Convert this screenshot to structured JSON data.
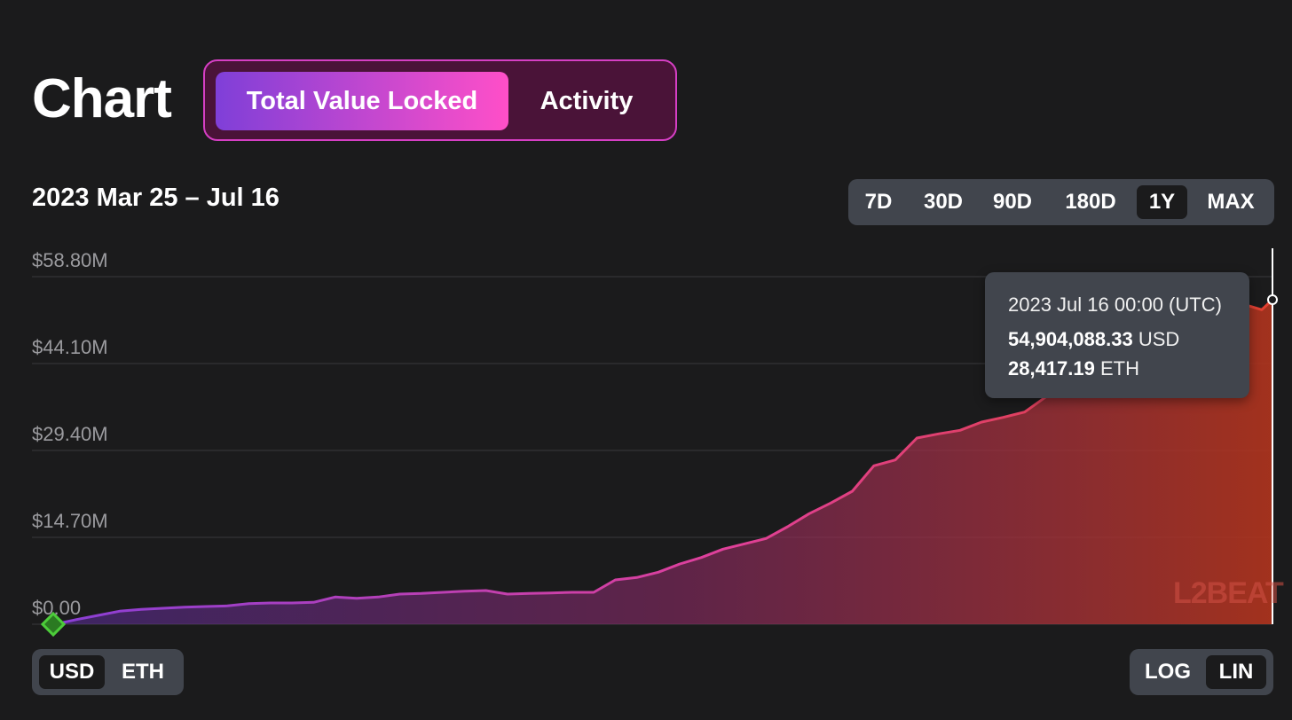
{
  "header": {
    "title": "Chart",
    "tabs": [
      {
        "label": "Total Value Locked",
        "active": true
      },
      {
        "label": "Activity",
        "active": false
      }
    ]
  },
  "date_range": "2023 Mar 25 – Jul 16",
  "periods": {
    "items": [
      "7D",
      "30D",
      "90D",
      "180D",
      "1Y",
      "MAX"
    ],
    "selected": "1Y"
  },
  "tooltip": {
    "date": "2023 Jul 16 00:00 (UTC)",
    "usd_value": "54,904,088.33",
    "usd_unit": "USD",
    "eth_value": "28,417.19",
    "eth_unit": "ETH"
  },
  "watermark": "L2BEAT",
  "currency_toggle": {
    "items": [
      "USD",
      "ETH"
    ],
    "selected": "USD"
  },
  "scale_toggle": {
    "items": [
      "LOG",
      "LIN"
    ],
    "selected": "LIN"
  },
  "colors": {
    "line_start": "#8a3fd6",
    "line_mid": "#e0409a",
    "line_end": "#e0402f",
    "marker": "#4ccc3a"
  },
  "chart_data": {
    "type": "area",
    "ylim": [
      0,
      58.8
    ],
    "yticks": [
      {
        "value": 0,
        "label": "$0.00"
      },
      {
        "value": 14.7,
        "label": "$14.70M"
      },
      {
        "value": 29.4,
        "label": "$29.40M"
      },
      {
        "value": 44.1,
        "label": "$44.10M"
      },
      {
        "value": 58.8,
        "label": "$58.80M"
      }
    ],
    "x": [
      0,
      2,
      4,
      6,
      8,
      10,
      12,
      14,
      16,
      18,
      20,
      22,
      24,
      26,
      28,
      30,
      32,
      34,
      36,
      38,
      40,
      42,
      44,
      46,
      48,
      50,
      52,
      54,
      56,
      58,
      60,
      62,
      64,
      66,
      68,
      70,
      72,
      74,
      76,
      78,
      80,
      82,
      84,
      86,
      88,
      90,
      92,
      94,
      96,
      98,
      100,
      102,
      104,
      106,
      108,
      110,
      112,
      113
    ],
    "values": [
      0,
      0.8,
      1.5,
      2.2,
      2.5,
      2.7,
      2.9,
      3.0,
      3.1,
      3.5,
      3.6,
      3.6,
      3.7,
      4.6,
      4.4,
      4.6,
      5.1,
      5.2,
      5.4,
      5.6,
      5.7,
      5.1,
      5.2,
      5.3,
      5.4,
      5.4,
      7.5,
      7.9,
      8.8,
      10.2,
      11.3,
      12.7,
      13.6,
      14.5,
      16.5,
      18.7,
      20.5,
      22.5,
      26.8,
      27.8,
      31.5,
      32.2,
      32.8,
      34.2,
      35.0,
      35.9,
      38.5,
      41.0,
      44.3,
      47.8,
      50.2,
      52.4,
      53.8,
      53.6,
      53.9,
      54.3,
      53.2,
      54.9
    ],
    "series": [
      {
        "values": "values"
      }
    ]
  }
}
